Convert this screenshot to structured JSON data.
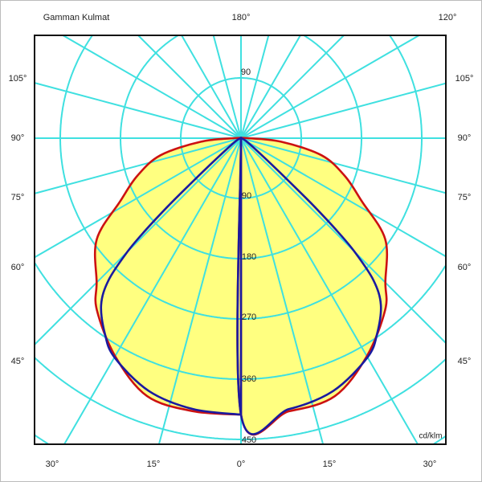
{
  "chart_data": {
    "type": "polar",
    "title": "Gamman Kulmat",
    "unit_label": "cd/klm",
    "radial_ticks": [
      90,
      180,
      270,
      360,
      450
    ],
    "radial_max": 450,
    "top_ring_label": "90",
    "angle_labels": {
      "top": [
        "180°",
        "120°"
      ],
      "left": [
        "105°",
        "90°",
        "75°",
        "60°",
        "45°"
      ],
      "right": [
        "105°",
        "90°",
        "75°",
        "60°",
        "45°"
      ],
      "bottom": [
        "30°",
        "15°",
        "0°",
        "15°",
        "30°"
      ]
    },
    "angular_grid_step_deg": 15,
    "grid": true,
    "series": [
      {
        "color": "#cc1111",
        "gamma": [
          0,
          10,
          20,
          30,
          40,
          45,
          55,
          62.5,
          70,
          78,
          85,
          90
        ],
        "values": [
          413,
          414,
          410,
          376,
          335,
          305,
          263,
          203,
          165,
          123,
          60,
          10
        ]
      },
      {
        "color": "#1a1aa0",
        "gamma": [
          0,
          10,
          20,
          30,
          35,
          40,
          43,
          45,
          46,
          47,
          48,
          50,
          60,
          90
        ],
        "values": [
          413,
          411,
          402,
          378,
          355,
          325,
          290,
          240,
          200,
          150,
          100,
          50,
          10,
          0
        ]
      }
    ],
    "colors": {
      "grid": "#3fe0e0",
      "fill": "#ffff80",
      "frame": "#111111"
    }
  }
}
